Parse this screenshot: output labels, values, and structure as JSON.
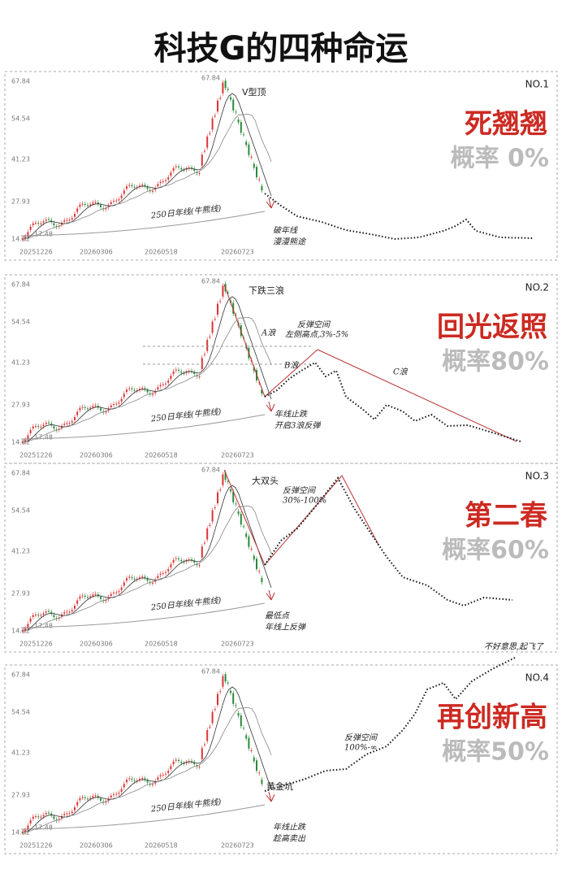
{
  "title": "科技G的四种命运",
  "panels": [
    {
      "number": "NO.1",
      "name": "死翘翘",
      "probability": "概率  0%",
      "y_labels": [
        "67.84",
        "54.54",
        "41.23",
        "27.93",
        "14.62"
      ],
      "low_label": "17.48",
      "peak_label": "67.84",
      "x_labels": [
        "20251226",
        "20260306",
        "20260518",
        "20260723"
      ],
      "ma_label": "250日年线(牛熊线)",
      "annotations": [
        "V型顶",
        "破年线",
        "漫漫熊途"
      ]
    },
    {
      "number": "NO.2",
      "name": "回光返照",
      "probability": "概率80%",
      "y_labels": [
        "67.84",
        "54.54",
        "41.23",
        "27.93",
        "14.62"
      ],
      "low_label": "17.48",
      "peak_label": "67.84",
      "x_labels": [
        "20251226",
        "20260306",
        "20260518",
        "20260723"
      ],
      "ma_label": "250日年线(牛熊线)",
      "annotations": [
        "下跌三浪",
        "A浪",
        "B浪",
        "C浪",
        "反弹空间",
        "左侧高点,3%-5%",
        "年线止跌",
        "开启3浪反弹"
      ]
    },
    {
      "number": "NO.3",
      "name": "第二春",
      "probability": "概率60%",
      "y_labels": [
        "67.84",
        "54.54",
        "41.23",
        "27.93",
        "14.62"
      ],
      "low_label": "17.48",
      "peak_label": "67.84",
      "x_labels": [
        "20251226",
        "20260306",
        "20260518",
        "20260723"
      ],
      "ma_label": "250日年线(牛熊线)",
      "annotations": [
        "大双头",
        "反弹空间",
        "30%-100%",
        "最低点",
        "年线上反弹"
      ]
    },
    {
      "number": "NO.4",
      "name": "再创新高",
      "probability": "概率50%",
      "y_labels": [
        "67.84",
        "54.54",
        "41.23",
        "27.93",
        "14.62"
      ],
      "low_label": "17.48",
      "peak_label": "67.84",
      "x_labels": [
        "20251226",
        "20260306",
        "20260518",
        "20260723"
      ],
      "ma_label": "250日年线(牛熊线)",
      "annotations": [
        "黄金坑",
        "反弹空间",
        "100%-∞",
        "年线止跌",
        "趁高卖出",
        "不好意思,起飞了"
      ]
    }
  ]
}
